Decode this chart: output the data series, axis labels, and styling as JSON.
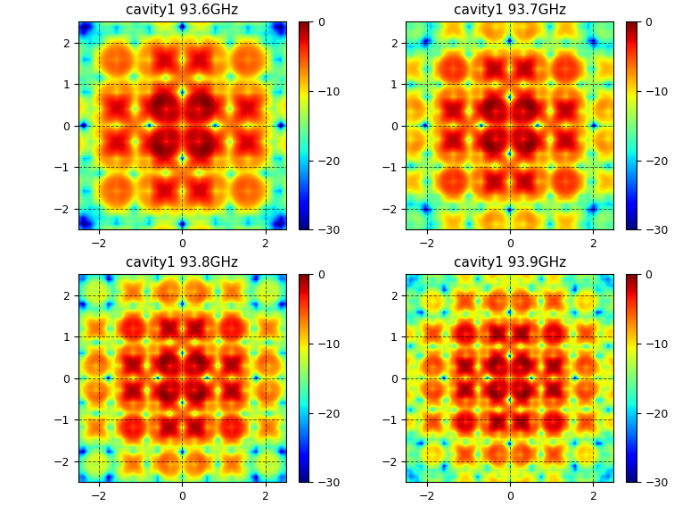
{
  "titles": [
    "cavity1 93.6GHz",
    "cavity1 93.7GHz",
    "cavity1 93.8GHz",
    "cavity1 93.9GHz"
  ],
  "xlim": [
    -2.5,
    2.5
  ],
  "ylim": [
    -2.5,
    2.5
  ],
  "xticks": [
    -2,
    0,
    2
  ],
  "yticks": [
    -2,
    -1,
    0,
    1,
    2
  ],
  "clim": [
    -30,
    0
  ],
  "cticks": [
    0,
    -10,
    -20,
    -30
  ],
  "cmap": "jet",
  "grid_color": "black",
  "grid_style": "--",
  "grid_alpha": 0.6,
  "background": "#ffffff",
  "N": 300,
  "freqs": [
    93.6,
    93.7,
    93.8,
    93.9
  ],
  "font_size": 11,
  "title_fontsize": 11
}
